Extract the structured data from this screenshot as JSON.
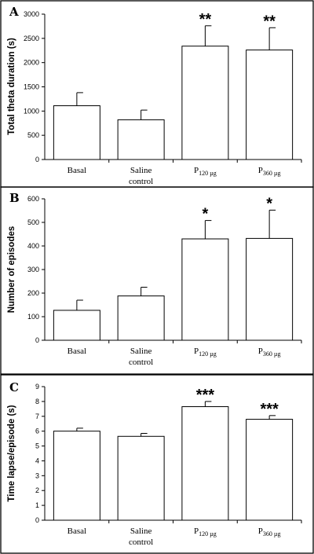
{
  "chart_data": [
    {
      "panel": "A",
      "type": "bar",
      "ylabel": "Total theta duration (s)",
      "categories": [
        {
          "line1": "Basal",
          "line2": ""
        },
        {
          "line1": "Saline",
          "line2": "control"
        },
        {
          "prefix": "P",
          "sub": "120 µg"
        },
        {
          "prefix": "P",
          "sub": "360 µg"
        }
      ],
      "values": [
        1110,
        820,
        2340,
        2260
      ],
      "errors": [
        270,
        200,
        420,
        460
      ],
      "significance": [
        "",
        "",
        "**",
        "**"
      ],
      "ylim": [
        0,
        3000
      ],
      "yticks": [
        0,
        500,
        1000,
        1500,
        2000,
        2500,
        3000
      ]
    },
    {
      "panel": "B",
      "type": "bar",
      "ylabel": "Number of episodes",
      "categories": [
        {
          "line1": "Basal",
          "line2": ""
        },
        {
          "line1": "Saline",
          "line2": "control"
        },
        {
          "prefix": "P",
          "sub": "120 µg"
        },
        {
          "prefix": "P",
          "sub": "360 µg"
        }
      ],
      "values": [
        127,
        188,
        430,
        432
      ],
      "errors": [
        43,
        37,
        78,
        120
      ],
      "significance": [
        "",
        "",
        "*",
        "*"
      ],
      "ylim": [
        0,
        600
      ],
      "yticks": [
        0,
        100,
        200,
        300,
        400,
        500,
        600
      ]
    },
    {
      "panel": "C",
      "type": "bar",
      "ylabel": "Time lapse/episode (s)",
      "categories": [
        {
          "line1": "Basal",
          "line2": ""
        },
        {
          "line1": "Saline",
          "line2": "control"
        },
        {
          "prefix": "P",
          "sub": "120 µg"
        },
        {
          "prefix": "P",
          "sub": "360 µg"
        }
      ],
      "values": [
        6.0,
        5.65,
        7.65,
        6.8
      ],
      "errors": [
        0.2,
        0.2,
        0.35,
        0.25
      ],
      "significance": [
        "",
        "",
        "***",
        "***"
      ],
      "ylim": [
        0,
        9
      ],
      "yticks": [
        0,
        1,
        2,
        3,
        4,
        5,
        6,
        7,
        8,
        9
      ]
    }
  ]
}
